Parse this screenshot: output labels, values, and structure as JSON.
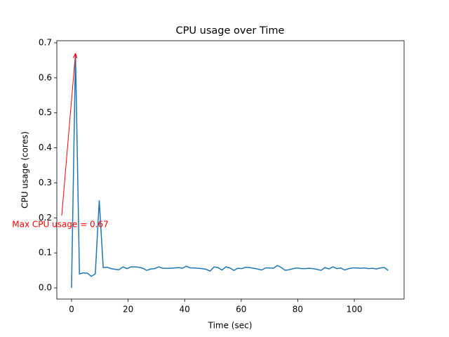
{
  "chart_data": {
    "type": "line",
    "title": "CPU usage over Time",
    "x_label": "Time (sec)",
    "y_label": "CPU usage (cores)",
    "annotation": "Max CPU usage = 0.67",
    "annotation_color": "#ff0000",
    "x": [
      0,
      1.4,
      2.8,
      4.2,
      5.6,
      7,
      8.4,
      9.8,
      11.2,
      12.6,
      14,
      15.4,
      16.8,
      18.2,
      19.6,
      21,
      22.4,
      23.8,
      25.2,
      26.6,
      28,
      29.4,
      30.8,
      32.2,
      33.6,
      35,
      36.4,
      37.8,
      39.2,
      40.6,
      42,
      43.4,
      44.8,
      46.2,
      47.6,
      49,
      50.4,
      51.8,
      53.2,
      54.6,
      56,
      57.4,
      58.8,
      60.2,
      61.6,
      63,
      64.4,
      65.8,
      67.2,
      68.6,
      70,
      71.4,
      72.8,
      74.2,
      75.6,
      77,
      78.4,
      79.8,
      81.2,
      82.6,
      84,
      85.4,
      86.8,
      88.2,
      89.6,
      91,
      92.4,
      93.8,
      95.2,
      96.6,
      98,
      99.4,
      100.8,
      102.2,
      103.6,
      105,
      106.4,
      107.8,
      109.2,
      110.6,
      112
    ],
    "series": [
      {
        "name": "CPU usage",
        "color": "#1f77b4",
        "values": [
          0,
          0.67,
          0.04,
          0.043,
          0.042,
          0.033,
          0.04,
          0.25,
          0.058,
          0.059,
          0.055,
          0.053,
          0.052,
          0.06,
          0.055,
          0.06,
          0.06,
          0.059,
          0.056,
          0.05,
          0.054,
          0.055,
          0.06,
          0.056,
          0.056,
          0.056,
          0.057,
          0.058,
          0.056,
          0.062,
          0.057,
          0.057,
          0.056,
          0.055,
          0.053,
          0.048,
          0.06,
          0.058,
          0.051,
          0.06,
          0.057,
          0.05,
          0.056,
          0.055,
          0.059,
          0.058,
          0.056,
          0.054,
          0.051,
          0.057,
          0.057,
          0.056,
          0.064,
          0.058,
          0.05,
          0.052,
          0.055,
          0.057,
          0.055,
          0.055,
          0.056,
          0.055,
          0.053,
          0.05,
          0.058,
          0.054,
          0.06,
          0.055,
          0.057,
          0.051,
          0.055,
          0.057,
          0.057,
          0.056,
          0.057,
          0.055,
          0.056,
          0.054,
          0.057,
          0.058,
          0.05
        ]
      }
    ],
    "xlim": [
      -5.2,
      117.6
    ],
    "ylim": [
      -0.032,
      0.706
    ],
    "xticks": [
      0,
      20,
      40,
      60,
      80,
      100
    ],
    "yticks": [
      {
        "value": 0,
        "label": "0.0"
      },
      {
        "value": 0.1,
        "label": "0.1"
      },
      {
        "value": 0.2,
        "label": "0.2"
      },
      {
        "value": 0.3,
        "label": "0.3"
      },
      {
        "value": 0.4,
        "label": "0.4"
      },
      {
        "value": 0.5,
        "label": "0.5"
      },
      {
        "value": 0.6,
        "label": "0.6"
      },
      {
        "value": 0.7,
        "label": "0.7"
      }
    ],
    "grid": false
  }
}
